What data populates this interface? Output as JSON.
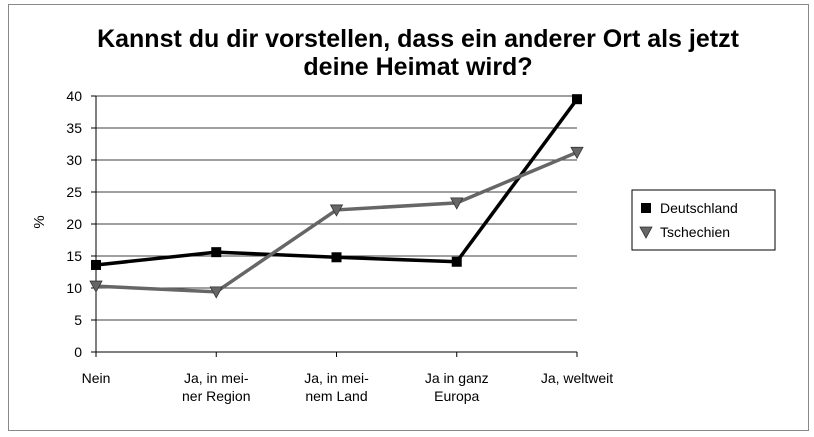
{
  "chart_data": {
    "type": "line",
    "title": "Kannst du dir vorstellen, dass ein anderer Ort als jetzt\ndeine Heimat wird?",
    "y_label": "%",
    "categories": [
      "Nein",
      "Ja, in mei-\nner Region",
      "Ja, in mei-\nnem Land",
      "Ja in ganz\nEuropa",
      "Ja, weltweit"
    ],
    "series": [
      {
        "name": "Deutschland",
        "color": "#000000",
        "marker": "square",
        "values": [
          13.6,
          15.6,
          14.8,
          14.1,
          39.5
        ]
      },
      {
        "name": "Tschechien",
        "color": "#666666",
        "marker": "triangle-down",
        "values": [
          10.3,
          9.4,
          22.2,
          23.3,
          31.2
        ]
      }
    ],
    "ylim": [
      0,
      40
    ],
    "yticks": [
      0,
      5,
      10,
      15,
      20,
      25,
      30,
      35,
      40
    ],
    "grid": true,
    "legend": "right"
  }
}
